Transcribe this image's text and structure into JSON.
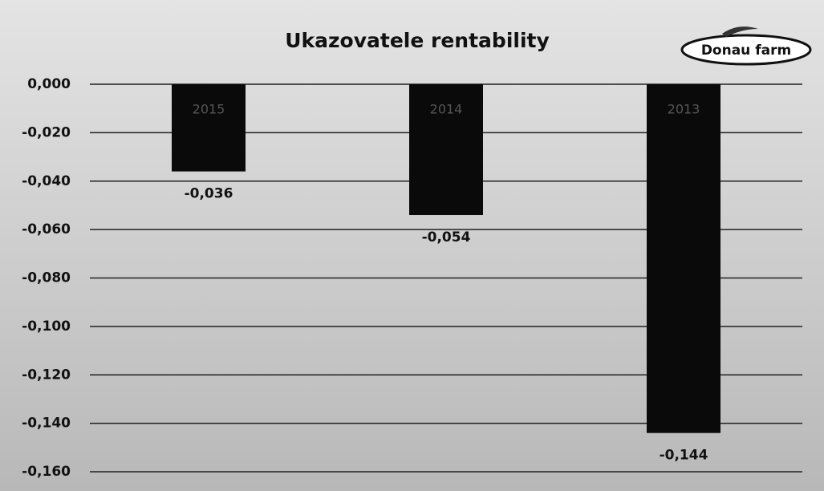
{
  "chart_data": {
    "type": "bar",
    "title": "Ukazovatele rentability",
    "logo": "Donau farm",
    "categories": [
      "2015",
      "2014",
      "2013"
    ],
    "values": [
      -0.036,
      -0.054,
      -0.144
    ],
    "value_labels": [
      "-0,036",
      "-0,054",
      "-0,144"
    ],
    "color": "#0a0a0a",
    "ylim": [
      -0.16,
      0
    ],
    "yticks": [
      {
        "value": 0,
        "label": "0,000"
      },
      {
        "value": -0.02,
        "label": "-0,020"
      },
      {
        "value": -0.04,
        "label": "-0,040"
      },
      {
        "value": -0.06,
        "label": "-0,060"
      },
      {
        "value": -0.08,
        "label": "-0,080"
      },
      {
        "value": -0.1,
        "label": "-0,100"
      },
      {
        "value": -0.12,
        "label": "-0,120"
      },
      {
        "value": -0.14,
        "label": "-0,140"
      },
      {
        "value": -0.16,
        "label": "-0,160"
      }
    ],
    "grid": true
  }
}
